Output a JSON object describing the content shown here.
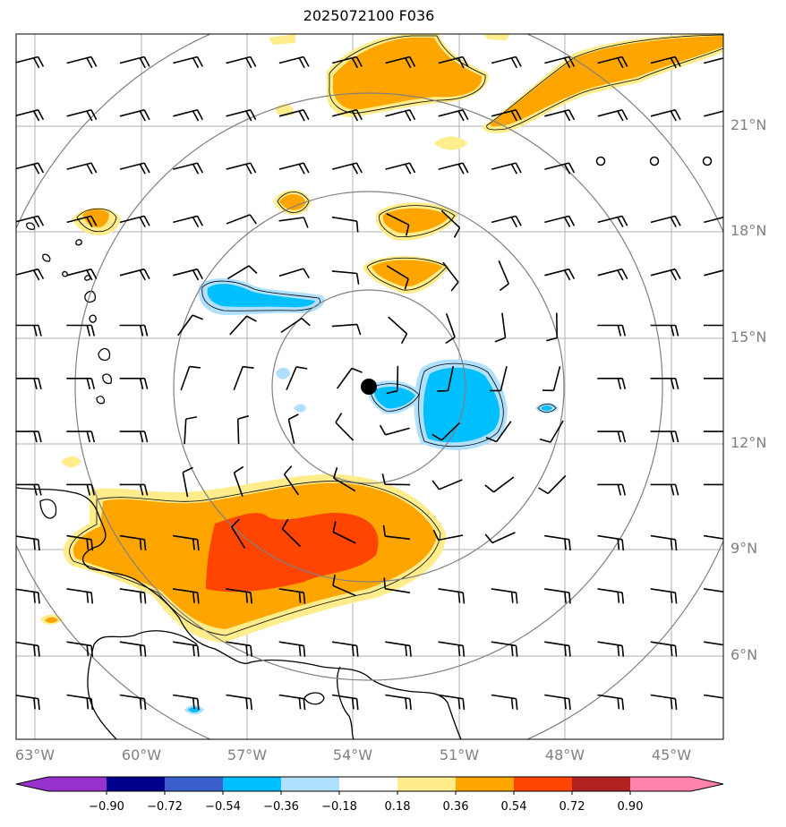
{
  "title": "2025072100 F036",
  "lat_labels": [
    "21°N",
    "18°N",
    "15°N",
    "12°N",
    "9°N",
    "6°N"
  ],
  "lon_labels": [
    "63°W",
    "60°W",
    "57°W",
    "54°W",
    "51°W",
    "48°W",
    "45°W"
  ],
  "colorbar": {
    "ticks": [
      "−0.90",
      "−0.72",
      "−0.54",
      "−0.36",
      "−0.18",
      "0.18",
      "0.36",
      "0.54",
      "0.72",
      "0.90"
    ],
    "colors": [
      "#9932cc",
      "#00008b",
      "#3a5fcd",
      "#00bfff",
      "#b0e0ff",
      "#ffffff",
      "#ffec8b",
      "#ffa500",
      "#ff4500",
      "#b22222",
      "#ff82ab"
    ]
  },
  "colors": {
    "positive_light": "#ffec8b",
    "positive_mid": "#ffa500",
    "positive_strong": "#ff4500",
    "negative_light": "#b0e0ff",
    "negative_mid": "#00bfff",
    "range_rings": "#808080",
    "gridlines": "#b0b0b0"
  },
  "center_marker": {
    "lat": 13.6,
    "lon": -53.6
  }
}
